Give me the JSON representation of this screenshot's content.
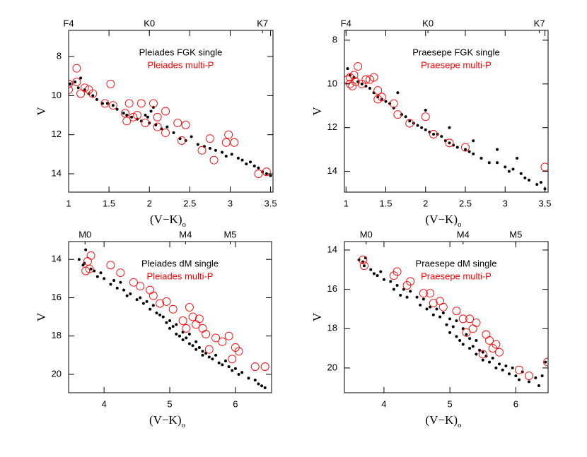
{
  "chart_data": [
    {
      "type": "scatter",
      "x_label": "(V−K)",
      "x_label_subscript": "o",
      "y_label": "V",
      "xlim": [
        1,
        3.53
      ],
      "ylim": [
        14.94,
        6.66
      ],
      "xticks": [
        1,
        1.5,
        2,
        2.5,
        3,
        3.5
      ],
      "yticks": [
        8,
        10,
        12,
        14
      ],
      "top_ticks": [
        {
          "value": 1,
          "label": "F4"
        },
        {
          "value": 2.0,
          "label": "K0"
        },
        {
          "value": 3.4,
          "label": "K7"
        }
      ],
      "series": [
        {
          "name": "Pleiades FGK single",
          "color": "#000000",
          "marker": "dot",
          "x": [
            1.02,
            1.08,
            1.12,
            1.15,
            1.2,
            1.25,
            1.3,
            1.35,
            1.42,
            1.48,
            1.55,
            1.6,
            1.68,
            1.72,
            1.78,
            1.85,
            1.9,
            1.98,
            2.02,
            2.08,
            2.15,
            2.22,
            2.3,
            2.38,
            2.45,
            2.52,
            2.6,
            2.68,
            2.75,
            2.82,
            2.9,
            2.95,
            3.02,
            3.1,
            3.15,
            3.2,
            3.25,
            3.3,
            3.35,
            3.4,
            3.45,
            3.5,
            1.95,
            2.0,
            2.05
          ],
          "values": [
            9.4,
            9.3,
            9.6,
            9.1,
            9.7,
            9.9,
            10.0,
            10.2,
            10.4,
            10.4,
            10.5,
            10.7,
            10.9,
            11.0,
            11.1,
            11.2,
            11.3,
            11.1,
            10.8,
            11.5,
            11.7,
            11.6,
            11.9,
            12.2,
            12.3,
            12.1,
            12.5,
            12.6,
            12.7,
            12.8,
            12.9,
            13.1,
            13.0,
            13.2,
            13.3,
            13.5,
            13.4,
            13.6,
            13.7,
            13.9,
            14.0,
            14.1,
            11.0,
            11.4,
            10.6
          ]
        },
        {
          "name": "Pleiades multi-P",
          "color": "#ff0000",
          "marker": "circle",
          "x": [
            1.0,
            1.0,
            1.1,
            1.1,
            1.15,
            1.2,
            1.25,
            1.3,
            1.45,
            1.52,
            1.55,
            1.7,
            1.72,
            1.75,
            1.8,
            1.9,
            1.95,
            2.05,
            2.1,
            2.2,
            2.2,
            2.35,
            2.4,
            2.45,
            2.65,
            2.75,
            2.8,
            2.95,
            2.98,
            3.05,
            3.35,
            3.45,
            2.1,
            1.85
          ],
          "values": [
            9.4,
            9.7,
            8.6,
            9.3,
            9.9,
            9.6,
            9.7,
            9.9,
            10.4,
            9.4,
            10.5,
            10.9,
            11.3,
            10.4,
            11.1,
            10.4,
            11.4,
            10.4,
            11.1,
            10.8,
            11.9,
            11.4,
            12.3,
            11.5,
            12.8,
            12.2,
            13.3,
            12.4,
            12.0,
            12.4,
            14.0,
            13.9,
            11.6,
            11.0
          ]
        }
      ]
    },
    {
      "type": "scatter",
      "x_label": "(V−K)",
      "x_label_subscript": "o",
      "y_label": "V",
      "xlim": [
        0.98,
        3.54
      ],
      "ylim": [
        14.95,
        7.55
      ],
      "xticks": [
        1,
        1.5,
        2,
        2.5,
        3,
        3.5
      ],
      "yticks": [
        8,
        10,
        12,
        14
      ],
      "top_ticks": [
        {
          "value": 1,
          "label": "F4"
        },
        {
          "value": 2.03,
          "label": "K0"
        },
        {
          "value": 3.43,
          "label": "K7"
        }
      ],
      "series": [
        {
          "name": "Praesepe FGK single",
          "color": "#000000",
          "marker": "dot",
          "x": [
            1.02,
            1.05,
            1.1,
            1.15,
            1.2,
            1.25,
            1.3,
            1.35,
            1.4,
            1.45,
            1.5,
            1.55,
            1.6,
            1.7,
            1.75,
            1.8,
            1.85,
            1.9,
            1.95,
            2.0,
            2.05,
            2.1,
            2.15,
            2.2,
            2.25,
            2.3,
            2.35,
            2.4,
            2.5,
            2.55,
            2.6,
            2.7,
            2.8,
            2.9,
            3.0,
            3.05,
            3.1,
            3.2,
            3.25,
            3.3,
            3.4,
            3.45,
            3.5,
            1.65,
            2.0,
            2.3,
            2.6,
            2.9,
            3.15
          ],
          "values": [
            9.3,
            9.6,
            9.7,
            9.9,
            10.0,
            10.1,
            10.2,
            10.4,
            10.6,
            10.7,
            10.8,
            10.9,
            11.1,
            11.4,
            11.5,
            11.7,
            11.8,
            11.9,
            12.0,
            12.1,
            12.2,
            12.3,
            12.3,
            12.4,
            12.6,
            12.7,
            12.8,
            12.9,
            13.0,
            13.1,
            13.2,
            13.4,
            13.6,
            13.6,
            13.8,
            14.0,
            13.9,
            14.1,
            14.3,
            14.4,
            14.6,
            14.5,
            14.8,
            10.4,
            11.2,
            12.0,
            12.6,
            13.0,
            13.4
          ]
        },
        {
          "name": "Praesepe multi-P",
          "color": "#ff0000",
          "marker": "circle",
          "x": [
            1.05,
            1.05,
            1.1,
            1.12,
            1.15,
            1.2,
            1.25,
            1.3,
            1.35,
            1.4,
            1.45,
            1.6,
            1.65,
            1.8,
            2.0,
            2.1,
            2.3,
            2.5,
            3.5,
            1.02,
            1.08,
            1.4
          ],
          "values": [
            9.7,
            10.0,
            9.6,
            9.9,
            9.2,
            10.0,
            9.8,
            9.8,
            9.7,
            10.7,
            10.6,
            10.9,
            11.4,
            11.8,
            11.5,
            12.3,
            12.7,
            12.9,
            13.8,
            9.8,
            10.1,
            10.3
          ]
        }
      ]
    },
    {
      "type": "scatter",
      "x_label": "(V−K)",
      "x_label_subscript": "o",
      "y_label": "V",
      "xlim": [
        3.46,
        6.55
      ],
      "ylim": [
        20.96,
        13.07
      ],
      "xticks": [
        4,
        5,
        6
      ],
      "yticks": [
        14,
        16,
        18,
        20
      ],
      "top_ticks": [
        {
          "value": 3.71,
          "label": "M0"
        },
        {
          "value": 5.24,
          "label": "M4"
        },
        {
          "value": 5.92,
          "label": "M5"
        }
      ],
      "series": [
        {
          "name": "Pleiades dM single",
          "color": "#000000",
          "marker": "dot",
          "x": [
            3.62,
            3.68,
            3.72,
            3.8,
            3.85,
            3.9,
            3.95,
            4.0,
            4.1,
            4.15,
            4.2,
            4.3,
            4.35,
            4.4,
            4.5,
            4.55,
            4.6,
            4.7,
            4.75,
            4.8,
            4.85,
            4.9,
            4.95,
            5.0,
            5.0,
            5.05,
            5.1,
            5.1,
            5.15,
            5.2,
            5.2,
            5.25,
            5.3,
            5.3,
            5.35,
            5.4,
            5.4,
            5.45,
            5.5,
            5.5,
            5.55,
            5.6,
            5.65,
            5.7,
            5.75,
            5.8,
            5.85,
            5.9,
            5.95,
            6.0,
            6.05,
            6.1,
            6.2,
            6.3,
            6.35,
            6.4,
            6.45,
            3.7,
            4.25,
            4.65
          ],
          "values": [
            14.0,
            14.3,
            13.5,
            14.5,
            14.6,
            14.9,
            14.7,
            15.0,
            15.3,
            15.1,
            15.5,
            15.6,
            15.9,
            15.8,
            16.1,
            16.0,
            16.3,
            16.6,
            16.4,
            16.8,
            16.9,
            17.0,
            17.3,
            17.2,
            17.6,
            17.5,
            17.9,
            17.4,
            18.0,
            17.8,
            18.2,
            18.1,
            18.4,
            17.9,
            18.5,
            18.3,
            18.7,
            18.6,
            18.8,
            19.0,
            18.9,
            19.1,
            19.2,
            19.0,
            19.4,
            19.5,
            19.3,
            19.6,
            19.8,
            19.7,
            20.0,
            19.9,
            20.2,
            20.3,
            20.5,
            20.6,
            20.7,
            14.2,
            15.2,
            16.2
          ]
        },
        {
          "name": "Pleiades multi-P",
          "color": "#ff0000",
          "marker": "circle",
          "x": [
            3.75,
            3.8,
            3.78,
            3.72,
            4.1,
            4.25,
            4.45,
            4.7,
            4.75,
            4.95,
            5.05,
            5.3,
            5.35,
            5.4,
            5.45,
            5.5,
            5.55,
            5.7,
            5.8,
            5.9,
            6.0,
            6.05,
            5.95,
            6.3,
            6.45,
            5.25,
            5.6,
            5.2,
            4.85,
            4.55
          ],
          "values": [
            14.1,
            13.8,
            14.5,
            14.6,
            14.3,
            14.7,
            15.2,
            15.6,
            15.9,
            16.2,
            16.6,
            16.5,
            17.0,
            17.4,
            17.1,
            17.6,
            17.9,
            18.1,
            18.3,
            18.0,
            18.6,
            18.8,
            19.2,
            19.6,
            19.6,
            17.6,
            18.7,
            17.2,
            16.3,
            15.4
          ]
        }
      ]
    },
    {
      "type": "scatter",
      "x_label": "(V−K)",
      "x_label_subscript": "o",
      "y_label": "V",
      "xlim": [
        3.4,
        6.49
      ],
      "ylim": [
        21.26,
        13.57
      ],
      "xticks": [
        4,
        5,
        6
      ],
      "yticks": [
        14,
        16,
        18,
        20
      ],
      "top_ticks": [
        {
          "value": 3.73,
          "label": "M0"
        },
        {
          "value": 5.2,
          "label": "M4"
        },
        {
          "value": 6.0,
          "label": "M5"
        }
      ],
      "series": [
        {
          "name": "Praesepe dM single",
          "color": "#000000",
          "marker": "dot",
          "x": [
            3.62,
            3.68,
            3.72,
            3.8,
            3.85,
            3.9,
            3.95,
            4.0,
            4.1,
            4.15,
            4.2,
            4.3,
            4.35,
            4.4,
            4.5,
            4.55,
            4.6,
            4.7,
            4.75,
            4.8,
            4.85,
            4.9,
            4.95,
            5.0,
            5.0,
            5.05,
            5.1,
            5.1,
            5.15,
            5.2,
            5.2,
            5.25,
            5.3,
            5.3,
            5.35,
            5.4,
            5.4,
            5.45,
            5.5,
            5.5,
            5.55,
            5.6,
            5.65,
            5.7,
            5.75,
            5.8,
            5.85,
            5.9,
            5.95,
            6.0,
            6.05,
            6.1,
            6.2,
            6.3,
            6.35,
            6.4,
            6.45,
            3.7,
            4.25,
            4.65
          ],
          "values": [
            14.5,
            14.6,
            14.4,
            15.0,
            15.2,
            15.3,
            15.1,
            15.5,
            15.6,
            16.0,
            15.8,
            16.0,
            16.4,
            16.1,
            16.4,
            16.8,
            16.5,
            16.9,
            17.3,
            17.0,
            17.4,
            17.2,
            17.8,
            17.5,
            18.2,
            17.9,
            18.4,
            17.6,
            18.6,
            18.0,
            18.8,
            18.3,
            19.0,
            18.5,
            18.9,
            18.6,
            19.3,
            19.1,
            19.2,
            19.6,
            19.4,
            19.7,
            19.5,
            20.0,
            19.8,
            20.1,
            19.9,
            20.3,
            20.0,
            20.4,
            20.6,
            20.2,
            20.7,
            20.5,
            20.9,
            20.4,
            19.7,
            14.8,
            16.3,
            17.0
          ]
        },
        {
          "name": "Praesepe multi-P",
          "color": "#ff0000",
          "marker": "circle",
          "x": [
            3.68,
            3.7,
            4.15,
            4.2,
            4.35,
            4.4,
            4.6,
            4.7,
            4.85,
            4.9,
            5.1,
            5.2,
            5.3,
            5.35,
            5.4,
            5.55,
            5.6,
            5.7,
            5.75,
            5.65,
            5.5,
            6.05,
            6.2,
            6.48,
            4.75,
            5.25
          ],
          "values": [
            14.5,
            14.8,
            15.3,
            15.1,
            15.8,
            15.6,
            16.2,
            16.2,
            16.6,
            16.9,
            17.1,
            17.5,
            17.5,
            18.0,
            17.7,
            18.3,
            18.6,
            18.8,
            19.2,
            19.0,
            19.3,
            20.1,
            20.4,
            19.7,
            16.7,
            18.2
          ]
        }
      ]
    }
  ]
}
